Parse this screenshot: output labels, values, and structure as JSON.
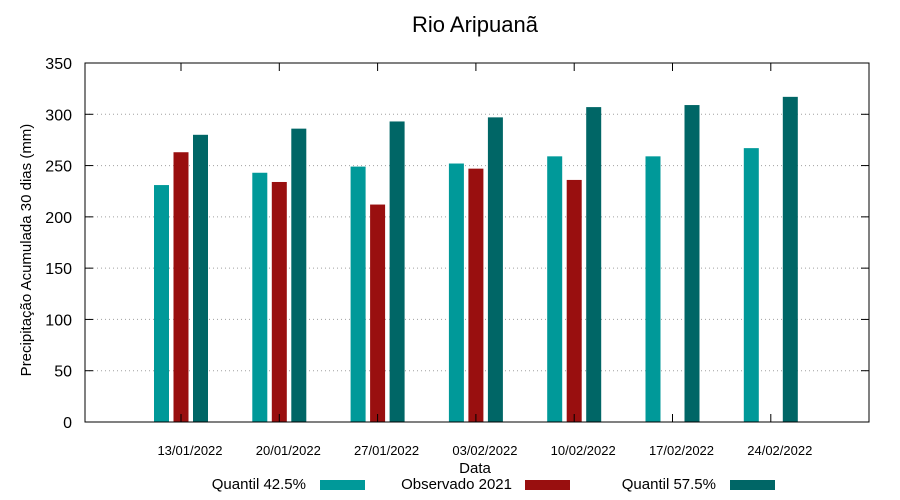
{
  "chart_data": {
    "type": "bar",
    "title": "Rio Aripuanã",
    "xlabel": "Data",
    "ylabel": "Precipitação Acumulada 30 dias (mm)",
    "ylim": [
      0,
      350
    ],
    "yticks": [
      0,
      50,
      100,
      150,
      200,
      250,
      300,
      350
    ],
    "grid": true,
    "legend_position": "bottom",
    "categories": [
      "13/01/2022",
      "20/01/2022",
      "27/01/2022",
      "03/02/2022",
      "10/02/2022",
      "17/02/2022",
      "24/02/2022"
    ],
    "series": [
      {
        "name": "Quantil 42.5%",
        "color": "#009999",
        "values": [
          231,
          243,
          249,
          252,
          259,
          259,
          267
        ]
      },
      {
        "name": "Observado 2021",
        "color": "#990f0f",
        "values": [
          263,
          234,
          212,
          247,
          236,
          null,
          null
        ]
      },
      {
        "name": "Quantil 57.5%",
        "color": "#006666",
        "values": [
          280,
          286,
          293,
          297,
          307,
          309,
          317
        ]
      }
    ]
  }
}
